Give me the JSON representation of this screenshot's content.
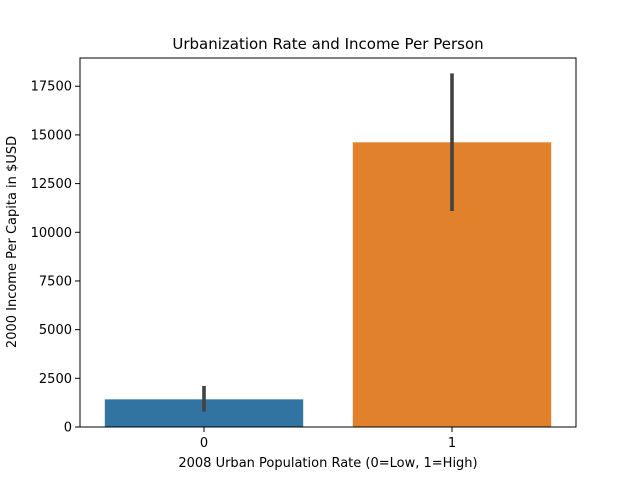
{
  "chart_data": {
    "type": "bar",
    "title": "Urbanization Rate and Income Per Person",
    "xlabel": "2008 Urban Population Rate (0=Low, 1=High)",
    "ylabel": "2000 Income Per Capita in $USD",
    "categories": [
      "0",
      "1"
    ],
    "values": [
      1420,
      14620
    ],
    "error_bars": [
      {
        "low": 790,
        "high": 2110
      },
      {
        "low": 11090,
        "high": 18160
      }
    ],
    "colors": [
      "#3274a1",
      "#e1812c"
    ],
    "error_bar_color": "#424242",
    "ylim": [
      0,
      18950
    ],
    "yticks": [
      0,
      2500,
      5000,
      7500,
      10000,
      12500,
      15000,
      17500
    ],
    "grid": false,
    "legend": "none"
  }
}
